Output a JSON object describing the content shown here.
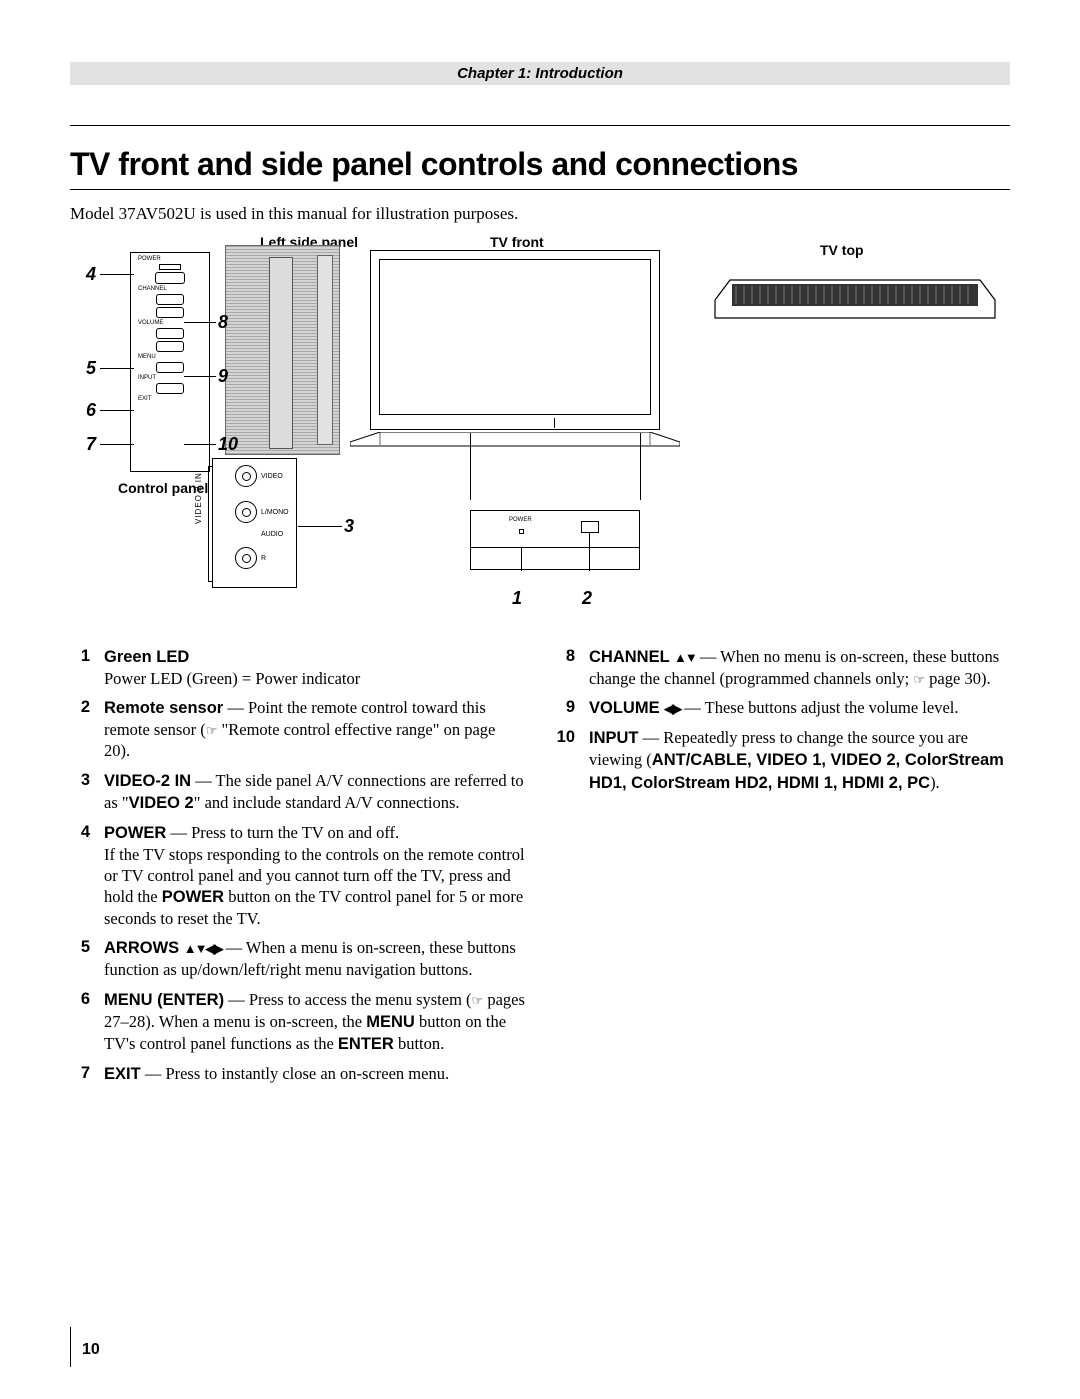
{
  "chapter_bar": "Chapter 1: Introduction",
  "title": "TV front and side panel controls and connections",
  "intro": "Model 37AV502U is used in this manual for illustration purposes.",
  "diagram": {
    "labels": {
      "left_side_panel": "Left  side panel",
      "tv_front": "TV front",
      "tv_top": "TV top",
      "control_panel": "Control panel"
    },
    "control_panel": {
      "power": "POWER",
      "channel": "CHANNEL",
      "volume": "VOLUME",
      "menu": "MENU",
      "input": "INPUT",
      "exit": "EXIT"
    },
    "jacks": {
      "video": "VIDEO",
      "lmono": "L/MONO",
      "audio": "AUDIO",
      "r": "R",
      "side": "VIDEO 2 IN"
    },
    "tv_front_detail": {
      "power": "POWER"
    },
    "callouts": {
      "c1": "1",
      "c2": "2",
      "c3": "3",
      "c4": "4",
      "c5": "5",
      "c6": "6",
      "c7": "7",
      "c8": "8",
      "c9": "9",
      "c10": "10"
    }
  },
  "items_left": [
    {
      "num": "1",
      "lead": "Green LED",
      "rest1": "Power LED (Green) = Power indicator"
    },
    {
      "num": "2",
      "lead": "Remote sensor",
      "rest1": " — Point the remote control toward this remote sensor (☞ \"Remote control effective range\" on page 20)."
    },
    {
      "num": "3",
      "lead": "VIDEO-2 IN",
      "rest1": " — The side panel A/V connections are referred to as \"",
      "bold1": "VIDEO 2",
      "rest2": "\" and include standard A/V connections."
    },
    {
      "num": "4",
      "lead": "POWER",
      "rest1": " — Press to turn the TV on and off.\nIf the TV stops responding to the controls on the remote control or TV control panel and you cannot turn off the TV, press and hold the ",
      "bold1": "POWER",
      "rest2": " button on the TV control panel for 5 or more seconds to reset the TV."
    },
    {
      "num": "5",
      "lead": "ARROWS ",
      "arrows": "▲▼◀▶",
      "rest1": " — When a menu is on-screen, these buttons function as up/down/left/right menu navigation buttons."
    },
    {
      "num": "6",
      "lead": "MENU (ENTER)",
      "rest1": " — Press to access the menu system (☞ pages 27–28). When a menu is on-screen, the ",
      "bold1": "MENU",
      "rest2": " button on the TV's control panel functions as the ",
      "bold2": "ENTER",
      "rest3": " button."
    },
    {
      "num": "7",
      "lead": "EXIT",
      "rest1": " — Press to instantly close an on-screen menu."
    }
  ],
  "items_right": [
    {
      "num": "8",
      "lead": "CHANNEL ",
      "arrows": "▲▼",
      "rest1": " — When no menu is on-screen, these buttons change the channel (programmed channels only; ☞ page 30)."
    },
    {
      "num": "9",
      "lead": "VOLUME ",
      "arrows": "◀▶",
      "rest1": " — These buttons adjust the volume level."
    },
    {
      "num": "10",
      "lead": "INPUT",
      "rest1": " — Repeatedly press to change the source you are viewing (",
      "bold1": "ANT/CABLE, VIDEO 1, VIDEO 2, ColorStream HD1, ColorStream HD2, HDMI 1, HDMI 2, PC",
      "rest2": ")."
    }
  ],
  "page_number": "10"
}
